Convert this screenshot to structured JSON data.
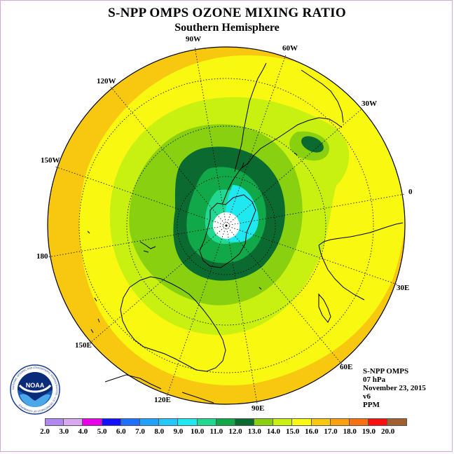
{
  "title": "S-NPP OMPS OZONE MIXING RATIO",
  "subtitle": "Southern Hemisphere",
  "longitude_labels": {
    "w90": "90W",
    "w60": "60W",
    "w30": "30W",
    "w120": "120W",
    "w150": "150W",
    "zero": "0",
    "e180": "180",
    "e30": "30E",
    "e150": "150E",
    "e60": "60E",
    "e120": "120E",
    "e90": "90E"
  },
  "info": {
    "instrument": "S-NPP OMPS",
    "pressure": "07 hPa",
    "date": "November 23, 2015",
    "version": "v6",
    "units": "PPM"
  },
  "logo": {
    "text": "NOAA",
    "ring_text": "NATIONAL OCEANIC AND ATMOSPHERIC ADMINISTRATION · U.S. DEPARTMENT OF COMMERCE"
  },
  "colorbar": {
    "ticks": [
      "2.0",
      "3.0",
      "4.0",
      "5.0",
      "6.0",
      "7.0",
      "8.0",
      "9.0",
      "10.0",
      "11.0",
      "12.0",
      "13.0",
      "14.0",
      "15.0",
      "16.0",
      "17.0",
      "18.0",
      "19.0",
      "20.0"
    ],
    "colors": [
      "#b088ee",
      "#d8a8f0",
      "#e800e8",
      "#1010ff",
      "#2070ff",
      "#20a0ff",
      "#20c8ff",
      "#20e8f0",
      "#20d890",
      "#10a848",
      "#0a6a30",
      "#88d010",
      "#c8f010",
      "#f8f810",
      "#f8c810",
      "#f8a010",
      "#f87010",
      "#f81010",
      "#a06030"
    ]
  }
}
